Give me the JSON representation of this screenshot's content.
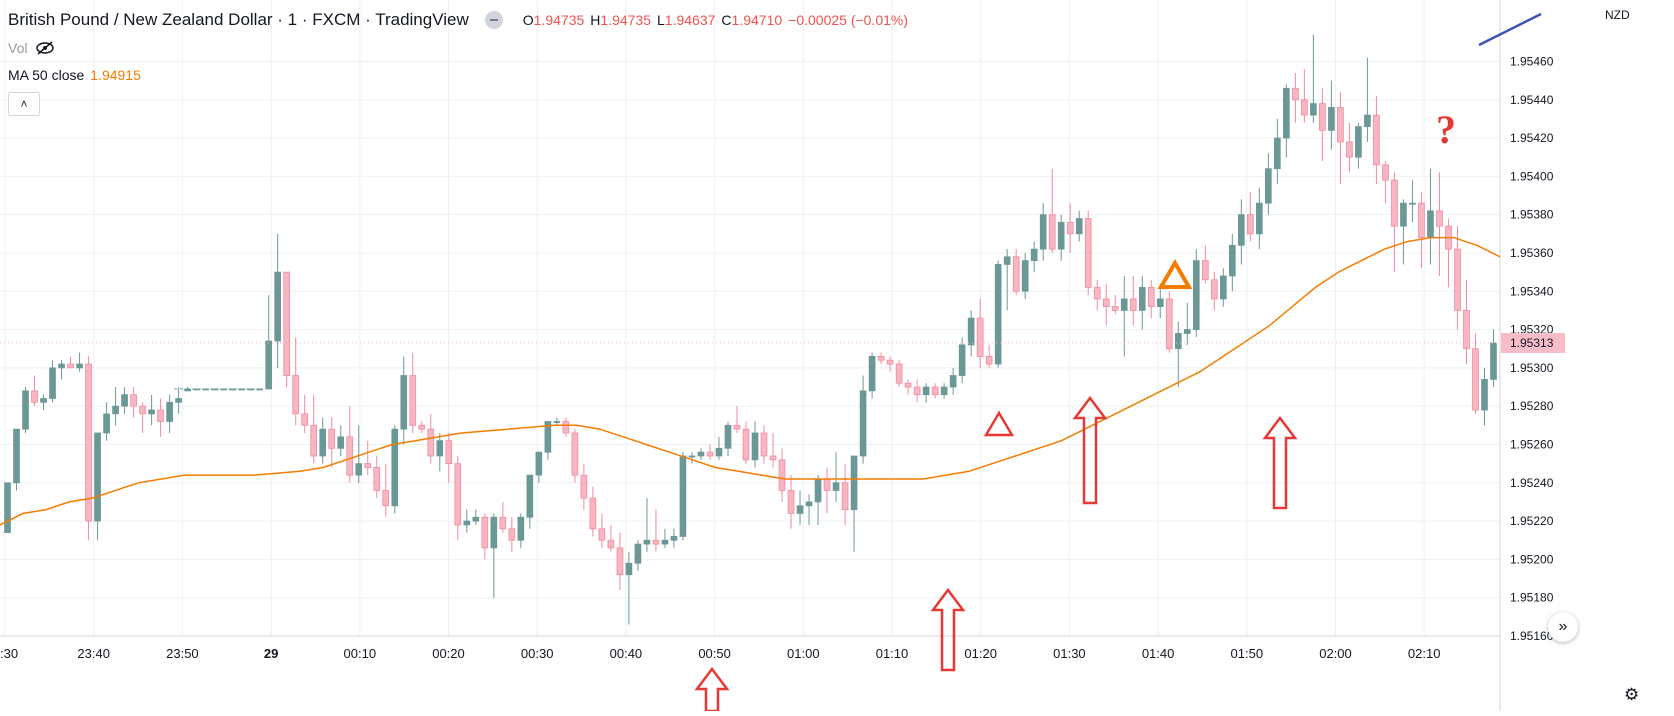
{
  "header": {
    "title": "British Pound / New Zealand Dollar · 1 · FXCM · TradingView",
    "ohlc": [
      {
        "k": "O",
        "v": "1.94735"
      },
      {
        "k": "H",
        "v": "1.94735"
      },
      {
        "k": "L",
        "v": "1.94637"
      },
      {
        "k": "C",
        "v": "1.94710"
      },
      {
        "k": "",
        "v": "−0.00025 (−0.01%)"
      }
    ]
  },
  "indicators": {
    "vol_label": "Vol",
    "ma_label": "MA 50 close",
    "ma_value": "1.94915"
  },
  "axis": {
    "currency": "NZD",
    "current_price": "1.95313"
  },
  "colors": {
    "up": "#6b9896",
    "down": "#f7b6c2",
    "down_border": "#f28a9e",
    "ma": "#f57c00",
    "arrow": "#e53935",
    "annotation_triangle_orange": "#f57c00",
    "trendline": "#3f51b5",
    "grid": "#eef0f3",
    "price_tag": "#f8bcc9"
  },
  "chart_data": {
    "type": "candlestick",
    "y_ticks": [
      "1.95460",
      "1.95440",
      "1.95420",
      "1.95400",
      "1.95380",
      "1.95360",
      "1.95340",
      "1.95320",
      "1.95300",
      "1.95280",
      "1.95260",
      "1.95240",
      "1.95220",
      "1.95200",
      "1.95180",
      "1.95160"
    ],
    "x_ticks": [
      ":30",
      "23:40",
      "23:50",
      "29",
      "00:10",
      "00:20",
      "00:30",
      "00:40",
      "00:50",
      "01:00",
      "01:10",
      "01:20",
      "01:30",
      "01:40",
      "01:50",
      "02:00",
      "02:10"
    ],
    "ylim": [
      1.9516,
      1.9549
    ],
    "candles": [
      [
        1.95214,
        1.9524,
        1.95214,
        1.9524
      ],
      [
        1.9524,
        1.95268,
        1.95236,
        1.95268
      ],
      [
        1.95268,
        1.9529,
        1.95266,
        1.95288
      ],
      [
        1.95288,
        1.95296,
        1.9528,
        1.95282
      ],
      [
        1.95282,
        1.95286,
        1.95278,
        1.95284
      ],
      [
        1.95284,
        1.95304,
        1.95282,
        1.953
      ],
      [
        1.953,
        1.95304,
        1.95294,
        1.95302
      ],
      [
        1.95302,
        1.95306,
        1.953,
        1.953
      ],
      [
        1.953,
        1.95308,
        1.95298,
        1.95302
      ],
      [
        1.95302,
        1.95306,
        1.9521,
        1.9522
      ],
      [
        1.9522,
        1.95266,
        1.9521,
        1.95266
      ],
      [
        1.95266,
        1.95282,
        1.95262,
        1.95276
      ],
      [
        1.95276,
        1.9529,
        1.9527,
        1.9528
      ],
      [
        1.9528,
        1.9529,
        1.95276,
        1.95286
      ],
      [
        1.95286,
        1.9529,
        1.95274,
        1.9528
      ],
      [
        1.9528,
        1.95282,
        1.95266,
        1.95276
      ],
      [
        1.95276,
        1.95286,
        1.9527,
        1.95278
      ],
      [
        1.95278,
        1.95284,
        1.95264,
        1.95272
      ],
      [
        1.95272,
        1.95286,
        1.95266,
        1.95282
      ],
      [
        1.95282,
        1.9529,
        1.95276,
        1.95284
      ],
      [
        1.95288,
        1.9529,
        1.95288,
        1.95289
      ],
      [
        1.95289,
        1.95289,
        1.95289,
        1.95289
      ],
      [
        1.95289,
        1.95289,
        1.95289,
        1.95289
      ],
      [
        1.95289,
        1.95289,
        1.95289,
        1.95289
      ],
      [
        1.95289,
        1.95289,
        1.95289,
        1.95289
      ],
      [
        1.95289,
        1.95289,
        1.95289,
        1.95289
      ],
      [
        1.95289,
        1.95289,
        1.95289,
        1.95289
      ],
      [
        1.95289,
        1.95289,
        1.95289,
        1.95289
      ],
      [
        1.95289,
        1.95289,
        1.95289,
        1.95289
      ],
      [
        1.95289,
        1.95338,
        1.95289,
        1.95314
      ],
      [
        1.95314,
        1.9537,
        1.953,
        1.9535
      ],
      [
        1.9535,
        1.9535,
        1.9529,
        1.95296
      ],
      [
        1.95296,
        1.95316,
        1.9527,
        1.95276
      ],
      [
        1.95276,
        1.95286,
        1.95266,
        1.9527
      ],
      [
        1.9527,
        1.95286,
        1.9525,
        1.95254
      ],
      [
        1.95254,
        1.95274,
        1.9525,
        1.95268
      ],
      [
        1.95268,
        1.95274,
        1.95248,
        1.95258
      ],
      [
        1.95258,
        1.9527,
        1.95254,
        1.95264
      ],
      [
        1.95264,
        1.9528,
        1.9524,
        1.95244
      ],
      [
        1.95244,
        1.9527,
        1.9524,
        1.9525
      ],
      [
        1.9525,
        1.95262,
        1.95244,
        1.95248
      ],
      [
        1.95248,
        1.95254,
        1.95232,
        1.95236
      ],
      [
        1.95236,
        1.9525,
        1.95222,
        1.95228
      ],
      [
        1.95228,
        1.9527,
        1.95224,
        1.95268
      ],
      [
        1.95268,
        1.95306,
        1.9526,
        1.95296
      ],
      [
        1.95296,
        1.95308,
        1.95266,
        1.9527
      ],
      [
        1.9527,
        1.95272,
        1.95266,
        1.95268
      ],
      [
        1.95268,
        1.95276,
        1.9525,
        1.95254
      ],
      [
        1.95254,
        1.95266,
        1.95246,
        1.95262
      ],
      [
        1.95262,
        1.95266,
        1.9524,
        1.9525
      ],
      [
        1.9525,
        1.95254,
        1.9521,
        1.95218
      ],
      [
        1.95218,
        1.95226,
        1.95214,
        1.9522
      ],
      [
        1.9522,
        1.95226,
        1.95218,
        1.95222
      ],
      [
        1.95222,
        1.95224,
        1.952,
        1.95206
      ],
      [
        1.95206,
        1.95224,
        1.9518,
        1.95222
      ],
      [
        1.95222,
        1.9523,
        1.95214,
        1.95216
      ],
      [
        1.95216,
        1.95222,
        1.95204,
        1.9521
      ],
      [
        1.9521,
        1.95224,
        1.95206,
        1.95222
      ],
      [
        1.95222,
        1.95244,
        1.95216,
        1.95244
      ],
      [
        1.95244,
        1.95256,
        1.9524,
        1.95256
      ],
      [
        1.95256,
        1.95272,
        1.95252,
        1.95272
      ],
      [
        1.95272,
        1.95274,
        1.9527,
        1.95272
      ],
      [
        1.95272,
        1.95274,
        1.95264,
        1.95266
      ],
      [
        1.95266,
        1.95268,
        1.9524,
        1.95244
      ],
      [
        1.95244,
        1.9525,
        1.95226,
        1.95232
      ],
      [
        1.95232,
        1.95238,
        1.95212,
        1.95216
      ],
      [
        1.95216,
        1.95224,
        1.95206,
        1.9521
      ],
      [
        1.9521,
        1.95218,
        1.95204,
        1.95206
      ],
      [
        1.95206,
        1.95214,
        1.95184,
        1.95192
      ],
      [
        1.95192,
        1.95204,
        1.95166,
        1.95198
      ],
      [
        1.95198,
        1.9521,
        1.95194,
        1.95208
      ],
      [
        1.95208,
        1.95232,
        1.95204,
        1.9521
      ],
      [
        1.9521,
        1.95226,
        1.95204,
        1.95208
      ],
      [
        1.95208,
        1.95216,
        1.95206,
        1.9521
      ],
      [
        1.9521,
        1.95216,
        1.95206,
        1.95212
      ],
      [
        1.95212,
        1.95256,
        1.9521,
        1.95254
      ],
      [
        1.95254,
        1.95256,
        1.9525,
        1.95254
      ],
      [
        1.95254,
        1.95258,
        1.95252,
        1.95256
      ],
      [
        1.95256,
        1.9526,
        1.95252,
        1.95254
      ],
      [
        1.95254,
        1.95264,
        1.95252,
        1.95258
      ],
      [
        1.95258,
        1.95272,
        1.95254,
        1.9527
      ],
      [
        1.9527,
        1.9528,
        1.95266,
        1.95268
      ],
      [
        1.95268,
        1.95272,
        1.9525,
        1.95252
      ],
      [
        1.95252,
        1.95272,
        1.95248,
        1.95266
      ],
      [
        1.95266,
        1.9527,
        1.9525,
        1.95254
      ],
      [
        1.95254,
        1.95266,
        1.95248,
        1.95252
      ],
      [
        1.95252,
        1.95258,
        1.9523,
        1.95236
      ],
      [
        1.95236,
        1.95244,
        1.95216,
        1.95224
      ],
      [
        1.95224,
        1.95236,
        1.95218,
        1.95228
      ],
      [
        1.95228,
        1.95234,
        1.95218,
        1.9523
      ],
      [
        1.9523,
        1.95244,
        1.95218,
        1.95242
      ],
      [
        1.95242,
        1.95248,
        1.95224,
        1.95236
      ],
      [
        1.95236,
        1.95256,
        1.9523,
        1.9524
      ],
      [
        1.9524,
        1.9525,
        1.95218,
        1.95226
      ],
      [
        1.95226,
        1.95252,
        1.95204,
        1.95254
      ],
      [
        1.95254,
        1.95296,
        1.9525,
        1.95288
      ],
      [
        1.95288,
        1.95308,
        1.95284,
        1.95306
      ],
      [
        1.95306,
        1.95308,
        1.95302,
        1.95304
      ],
      [
        1.95304,
        1.95306,
        1.95298,
        1.95302
      ],
      [
        1.95302,
        1.95304,
        1.9529,
        1.95292
      ],
      [
        1.95292,
        1.95294,
        1.95286,
        1.9529
      ],
      [
        1.9529,
        1.95294,
        1.95282,
        1.95286
      ],
      [
        1.95286,
        1.95292,
        1.95282,
        1.9529
      ],
      [
        1.9529,
        1.95292,
        1.95284,
        1.95286
      ],
      [
        1.95286,
        1.95292,
        1.95284,
        1.9529
      ],
      [
        1.9529,
        1.953,
        1.95286,
        1.95296
      ],
      [
        1.95296,
        1.95316,
        1.95292,
        1.95312
      ],
      [
        1.95312,
        1.9533,
        1.95306,
        1.95326
      ],
      [
        1.95326,
        1.95336,
        1.953,
        1.95306
      ],
      [
        1.95306,
        1.95312,
        1.953,
        1.95302
      ],
      [
        1.95302,
        1.95356,
        1.953,
        1.95354
      ],
      [
        1.95354,
        1.95362,
        1.9533,
        1.95358
      ],
      [
        1.95358,
        1.95362,
        1.95338,
        1.9534
      ],
      [
        1.9534,
        1.9536,
        1.95336,
        1.95356
      ],
      [
        1.95356,
        1.95366,
        1.9535,
        1.95362
      ],
      [
        1.95362,
        1.95386,
        1.95356,
        1.9538
      ],
      [
        1.9538,
        1.95404,
        1.9536,
        1.95362
      ],
      [
        1.95362,
        1.9538,
        1.95356,
        1.95376
      ],
      [
        1.95376,
        1.95386,
        1.9536,
        1.9537
      ],
      [
        1.9537,
        1.95382,
        1.95366,
        1.95378
      ],
      [
        1.95378,
        1.95382,
        1.95338,
        1.95342
      ],
      [
        1.95342,
        1.95346,
        1.9533,
        1.95336
      ],
      [
        1.95336,
        1.95344,
        1.95322,
        1.95332
      ],
      [
        1.95332,
        1.95338,
        1.95328,
        1.9533
      ],
      [
        1.9533,
        1.95348,
        1.95306,
        1.95336
      ],
      [
        1.95336,
        1.95348,
        1.95322,
        1.9533
      ],
      [
        1.9533,
        1.95348,
        1.9532,
        1.95342
      ],
      [
        1.95342,
        1.95346,
        1.95326,
        1.95332
      ],
      [
        1.95332,
        1.95344,
        1.95326,
        1.95336
      ],
      [
        1.95336,
        1.9534,
        1.95308,
        1.9531
      ],
      [
        1.9531,
        1.95324,
        1.9529,
        1.95318
      ],
      [
        1.95318,
        1.95334,
        1.95312,
        1.9532
      ],
      [
        1.9532,
        1.95362,
        1.95316,
        1.95356
      ],
      [
        1.95356,
        1.95364,
        1.95344,
        1.95346
      ],
      [
        1.95346,
        1.9535,
        1.9533,
        1.95336
      ],
      [
        1.95336,
        1.95352,
        1.95332,
        1.95348
      ],
      [
        1.95348,
        1.9537,
        1.9534,
        1.95364
      ],
      [
        1.95364,
        1.95388,
        1.95354,
        1.9538
      ],
      [
        1.9538,
        1.95392,
        1.95366,
        1.9537
      ],
      [
        1.9537,
        1.95394,
        1.95362,
        1.95386
      ],
      [
        1.95386,
        1.95412,
        1.9538,
        1.95404
      ],
      [
        1.95404,
        1.9543,
        1.95396,
        1.9542
      ],
      [
        1.9542,
        1.95448,
        1.9541,
        1.95446
      ],
      [
        1.95446,
        1.95454,
        1.95428,
        1.9544
      ],
      [
        1.9544,
        1.95456,
        1.95428,
        1.95432
      ],
      [
        1.95432,
        1.95474,
        1.95428,
        1.95438
      ],
      [
        1.95438,
        1.95446,
        1.95408,
        1.95424
      ],
      [
        1.95424,
        1.9545,
        1.95414,
        1.95436
      ],
      [
        1.95436,
        1.95444,
        1.95396,
        1.95418
      ],
      [
        1.95418,
        1.95428,
        1.95402,
        1.9541
      ],
      [
        1.9541,
        1.95428,
        1.95404,
        1.95426
      ],
      [
        1.95426,
        1.95462,
        1.95418,
        1.95432
      ],
      [
        1.95432,
        1.95442,
        1.95396,
        1.95406
      ],
      [
        1.95406,
        1.95408,
        1.95386,
        1.95398
      ],
      [
        1.95398,
        1.95402,
        1.9535,
        1.95374
      ],
      [
        1.95374,
        1.95388,
        1.95354,
        1.95386
      ],
      [
        1.95386,
        1.95398,
        1.95376,
        1.95386
      ],
      [
        1.95386,
        1.95392,
        1.95352,
        1.95368
      ],
      [
        1.95368,
        1.95404,
        1.95354,
        1.95382
      ],
      [
        1.95382,
        1.95402,
        1.95348,
        1.95374
      ],
      [
        1.95374,
        1.95378,
        1.95342,
        1.95362
      ],
      [
        1.95362,
        1.95374,
        1.9532,
        1.9533
      ],
      [
        1.9533,
        1.95346,
        1.95302,
        1.9531
      ],
      [
        1.9531,
        1.95318,
        1.95276,
        1.95278
      ],
      [
        1.95278,
        1.953,
        1.9527,
        1.95294
      ],
      [
        1.95294,
        1.9532,
        1.9529,
        1.95313
      ]
    ],
    "ma": [
      1.95218,
      1.95224,
      1.95226,
      1.9523,
      1.95232,
      1.95236,
      1.9524,
      1.95242,
      1.95244,
      1.95244,
      1.95244,
      1.95244,
      1.95245,
      1.95246,
      1.95248,
      1.95252,
      1.95256,
      1.9526,
      1.95262,
      1.95264,
      1.95266,
      1.95267,
      1.95268,
      1.95269,
      1.9527,
      1.9527,
      1.95268,
      1.95264,
      1.9526,
      1.95256,
      1.95252,
      1.95248,
      1.95246,
      1.95244,
      1.95242,
      1.95242,
      1.95242,
      1.95242,
      1.95242,
      1.95242,
      1.95242,
      1.95244,
      1.95246,
      1.9525,
      1.95254,
      1.95258,
      1.95262,
      1.95268,
      1.95274,
      1.9528,
      1.95286,
      1.95292,
      1.95298,
      1.95306,
      1.95314,
      1.95322,
      1.95332,
      1.95342,
      1.9535,
      1.95356,
      1.95362,
      1.95366,
      1.95368,
      1.95368,
      1.95364,
      1.95358
    ],
    "annotations": [
      "?",
      "triangle",
      "triangle-orange",
      "up-arrows",
      "trendline"
    ]
  }
}
